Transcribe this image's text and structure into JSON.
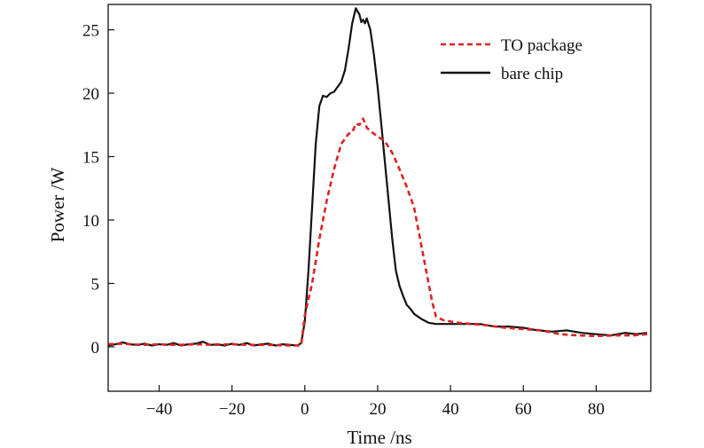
{
  "chart_data": {
    "type": "line",
    "title": "",
    "xlabel": "Time /ns",
    "ylabel": "Power /W",
    "xlim": [
      -54,
      95
    ],
    "ylim": [
      -3.5,
      27
    ],
    "xticks": [
      -40,
      -20,
      0,
      20,
      40,
      60,
      80
    ],
    "xtick_labels": [
      "−40",
      "−20",
      "0",
      "20",
      "40",
      "60",
      "80"
    ],
    "yticks": [
      0,
      5,
      10,
      15,
      20,
      25
    ],
    "ytick_labels": [
      "0",
      "5",
      "10",
      "15",
      "20",
      "25"
    ],
    "grid": false,
    "legend_position": "top-right",
    "series": [
      {
        "name": "TO package",
        "color": "#dd2222",
        "style": "dashed",
        "points": [
          [
            -54,
            0.2
          ],
          [
            -50,
            0.25
          ],
          [
            -45,
            0.15
          ],
          [
            -40,
            0.2
          ],
          [
            -35,
            0.15
          ],
          [
            -30,
            0.2
          ],
          [
            -25,
            0.15
          ],
          [
            -20,
            0.2
          ],
          [
            -15,
            0.15
          ],
          [
            -10,
            0.15
          ],
          [
            -5,
            0.1
          ],
          [
            -1,
            0.1
          ],
          [
            0,
            2.5
          ],
          [
            2,
            5.0
          ],
          [
            4,
            8.5
          ],
          [
            6,
            11.5
          ],
          [
            8,
            14.0
          ],
          [
            10,
            16.0
          ],
          [
            12,
            16.8
          ],
          [
            13,
            16.9
          ],
          [
            14,
            17.6
          ],
          [
            15,
            17.5
          ],
          [
            16,
            18.0
          ],
          [
            17,
            17.3
          ],
          [
            18,
            17.0
          ],
          [
            20,
            16.6
          ],
          [
            22,
            16.2
          ],
          [
            24,
            15.3
          ],
          [
            26,
            14.0
          ],
          [
            28,
            12.6
          ],
          [
            30,
            11.0
          ],
          [
            32,
            8.0
          ],
          [
            34,
            5.0
          ],
          [
            35,
            3.5
          ],
          [
            36,
            2.4
          ],
          [
            38,
            2.1
          ],
          [
            42,
            1.9
          ],
          [
            46,
            1.8
          ],
          [
            50,
            1.7
          ],
          [
            55,
            1.5
          ],
          [
            60,
            1.4
          ],
          [
            65,
            1.3
          ],
          [
            70,
            1.0
          ],
          [
            75,
            0.9
          ],
          [
            80,
            0.85
          ],
          [
            85,
            0.9
          ],
          [
            90,
            0.9
          ],
          [
            94,
            1.0
          ]
        ]
      },
      {
        "name": "bare chip",
        "color": "#111111",
        "style": "solid",
        "points": [
          [
            -54,
            0.1
          ],
          [
            -52,
            0.2
          ],
          [
            -50,
            0.35
          ],
          [
            -48,
            0.2
          ],
          [
            -46,
            0.15
          ],
          [
            -44,
            0.25
          ],
          [
            -42,
            0.1
          ],
          [
            -40,
            0.2
          ],
          [
            -38,
            0.15
          ],
          [
            -36,
            0.3
          ],
          [
            -34,
            0.1
          ],
          [
            -32,
            0.2
          ],
          [
            -30,
            0.25
          ],
          [
            -28,
            0.4
          ],
          [
            -26,
            0.15
          ],
          [
            -24,
            0.2
          ],
          [
            -22,
            0.1
          ],
          [
            -20,
            0.25
          ],
          [
            -18,
            0.15
          ],
          [
            -16,
            0.3
          ],
          [
            -14,
            0.1
          ],
          [
            -12,
            0.2
          ],
          [
            -10,
            0.25
          ],
          [
            -8,
            0.1
          ],
          [
            -6,
            0.2
          ],
          [
            -4,
            0.15
          ],
          [
            -2,
            0.1
          ],
          [
            -1,
            0.3
          ],
          [
            0,
            2.0
          ],
          [
            1,
            6.0
          ],
          [
            2,
            11.0
          ],
          [
            3,
            16.0
          ],
          [
            4,
            19.0
          ],
          [
            5,
            19.8
          ],
          [
            6,
            19.7
          ],
          [
            7,
            20.0
          ],
          [
            8,
            20.1
          ],
          [
            9,
            20.5
          ],
          [
            10,
            20.9
          ],
          [
            11,
            21.8
          ],
          [
            12,
            23.5
          ],
          [
            13,
            25.5
          ],
          [
            14,
            26.7
          ],
          [
            15,
            26.2
          ],
          [
            15.5,
            25.6
          ],
          [
            16,
            25.8
          ],
          [
            16.5,
            25.5
          ],
          [
            17,
            25.9
          ],
          [
            18,
            25.0
          ],
          [
            19,
            23.0
          ],
          [
            20,
            20.5
          ],
          [
            21,
            17.5
          ],
          [
            22,
            14.5
          ],
          [
            23,
            11.5
          ],
          [
            24,
            8.5
          ],
          [
            25,
            6.0
          ],
          [
            26,
            4.8
          ],
          [
            27,
            4.0
          ],
          [
            28,
            3.3
          ],
          [
            29,
            3.0
          ],
          [
            30,
            2.6
          ],
          [
            32,
            2.2
          ],
          [
            34,
            1.9
          ],
          [
            36,
            1.8
          ],
          [
            40,
            1.8
          ],
          [
            44,
            1.8
          ],
          [
            48,
            1.8
          ],
          [
            52,
            1.6
          ],
          [
            56,
            1.6
          ],
          [
            60,
            1.5
          ],
          [
            64,
            1.3
          ],
          [
            68,
            1.2
          ],
          [
            72,
            1.3
          ],
          [
            76,
            1.1
          ],
          [
            80,
            1.0
          ],
          [
            84,
            0.9
          ],
          [
            88,
            1.1
          ],
          [
            91,
            1.0
          ],
          [
            94,
            1.1
          ]
        ]
      }
    ]
  }
}
